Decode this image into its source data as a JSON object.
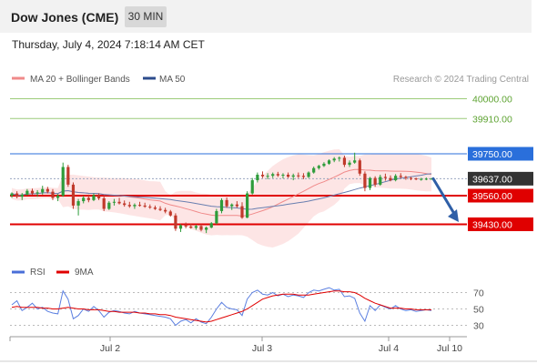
{
  "header": {
    "title": "Dow Jones (CME)",
    "timeframe": "30 MIN",
    "timestamp": "Thursday, July 4, 2024 7:18:14 AM CET"
  },
  "legend_main": [
    {
      "label": "MA 20 + Bollinger Bands",
      "color": "#f08a8a"
    },
    {
      "label": "MA 50",
      "color": "#2c4c8c"
    }
  ],
  "watermark": "Research © 2024 Trading Central",
  "chart_data": {
    "type": "line",
    "price_levels": [
      {
        "label": "40000.00",
        "value": 40000,
        "kind": "target",
        "color": "#9ccc7a"
      },
      {
        "label": "39910.00",
        "value": 39910,
        "kind": "target",
        "color": "#9ccc7a"
      },
      {
        "label": "39750.00",
        "value": 39750,
        "kind": "resistance",
        "color": "#2a6fdb"
      },
      {
        "label": "39637.00",
        "value": 39637,
        "kind": "last_price",
        "color": "#333333"
      },
      {
        "label": "39560.00",
        "value": 39560,
        "kind": "support",
        "color": "#e00000"
      },
      {
        "label": "39430.00",
        "value": 39430,
        "kind": "support",
        "color": "#e00000"
      }
    ],
    "price_range": [
      39300,
      40100
    ],
    "candles": [
      [
        39560,
        39575,
        39550,
        39570
      ],
      [
        39570,
        39580,
        39548,
        39555
      ],
      [
        39555,
        39572,
        39540,
        39565
      ],
      [
        39565,
        39590,
        39560,
        39582
      ],
      [
        39582,
        39592,
        39562,
        39570
      ],
      [
        39570,
        39585,
        39555,
        39575
      ],
      [
        39575,
        39605,
        39565,
        39590
      ],
      [
        39590,
        39600,
        39570,
        39578
      ],
      [
        39578,
        39590,
        39540,
        39550
      ],
      [
        39550,
        39568,
        39535,
        39560
      ],
      [
        39560,
        39710,
        39555,
        39690
      ],
      [
        39690,
        39700,
        39600,
        39610
      ],
      [
        39610,
        39620,
        39500,
        39515
      ],
      [
        39515,
        39545,
        39470,
        39535
      ],
      [
        39535,
        39560,
        39525,
        39550
      ],
      [
        39550,
        39565,
        39530,
        39540
      ],
      [
        39540,
        39570,
        39535,
        39562
      ],
      [
        39562,
        39570,
        39540,
        39548
      ],
      [
        39548,
        39560,
        39490,
        39500
      ],
      [
        39500,
        39535,
        39495,
        39528
      ],
      [
        39528,
        39545,
        39515,
        39532
      ],
      [
        39532,
        39550,
        39520,
        39525
      ],
      [
        39525,
        39538,
        39510,
        39518
      ],
      [
        39518,
        39532,
        39505,
        39512
      ],
      [
        39512,
        39525,
        39500,
        39518
      ],
      [
        39518,
        39532,
        39510,
        39515
      ],
      [
        39515,
        39528,
        39505,
        39510
      ],
      [
        39510,
        39520,
        39500,
        39506
      ],
      [
        39506,
        39515,
        39495,
        39500
      ],
      [
        39500,
        39512,
        39490,
        39495
      ],
      [
        39495,
        39505,
        39480,
        39488
      ],
      [
        39488,
        39495,
        39465,
        39470
      ],
      [
        39470,
        39480,
        39400,
        39410
      ],
      [
        39410,
        39430,
        39395,
        39425
      ],
      [
        39425,
        39438,
        39412,
        39420
      ],
      [
        39420,
        39432,
        39410,
        39414
      ],
      [
        39414,
        39428,
        39405,
        39422
      ],
      [
        39422,
        39430,
        39398,
        39405
      ],
      [
        39405,
        39420,
        39390,
        39415
      ],
      [
        39415,
        39440,
        39412,
        39435
      ],
      [
        39435,
        39500,
        39430,
        39490
      ],
      [
        39490,
        39548,
        39480,
        39540
      ],
      [
        39540,
        39552,
        39505,
        39512
      ],
      [
        39512,
        39525,
        39495,
        39520
      ],
      [
        39520,
        39535,
        39505,
        39512
      ],
      [
        39512,
        39530,
        39455,
        39460
      ],
      [
        39460,
        39580,
        39458,
        39570
      ],
      [
        39570,
        39640,
        39565,
        39630
      ],
      [
        39630,
        39665,
        39620,
        39655
      ],
      [
        39655,
        39670,
        39640,
        39648
      ],
      [
        39648,
        39662,
        39635,
        39650
      ],
      [
        39650,
        39665,
        39640,
        39658
      ],
      [
        39658,
        39668,
        39645,
        39652
      ],
      [
        39652,
        39662,
        39638,
        39655
      ],
      [
        39655,
        39665,
        39640,
        39646
      ],
      [
        39646,
        39660,
        39630,
        39652
      ],
      [
        39652,
        39665,
        39640,
        39650
      ],
      [
        39650,
        39662,
        39635,
        39645
      ],
      [
        39645,
        39670,
        39640,
        39665
      ],
      [
        39665,
        39692,
        39660,
        39685
      ],
      [
        39685,
        39700,
        39678,
        39695
      ],
      [
        39695,
        39712,
        39690,
        39705
      ],
      [
        39705,
        39725,
        39700,
        39720
      ],
      [
        39720,
        39735,
        39712,
        39728
      ],
      [
        39728,
        39738,
        39715,
        39732
      ],
      [
        39732,
        39742,
        39690,
        39700
      ],
      [
        39700,
        39720,
        39690,
        39710
      ],
      [
        39710,
        39755,
        39705,
        39720
      ],
      [
        39720,
        39728,
        39650,
        39660
      ],
      [
        39660,
        39670,
        39580,
        39595
      ],
      [
        39595,
        39645,
        39585,
        39640
      ],
      [
        39640,
        39648,
        39600,
        39610
      ],
      [
        39610,
        39655,
        39605,
        39645
      ],
      [
        39645,
        39660,
        39628,
        39640
      ],
      [
        39640,
        39652,
        39625,
        39630
      ],
      [
        39630,
        39658,
        39625,
        39650
      ],
      [
        39650,
        39662,
        39638,
        39645
      ],
      [
        39645,
        39650,
        39632,
        39640
      ],
      [
        39640,
        39645,
        39630,
        39638
      ],
      [
        39638,
        39642,
        39630,
        39635
      ],
      [
        39635,
        39641,
        39628,
        39636
      ],
      [
        39636,
        39642,
        39630,
        39637
      ],
      [
        39637,
        39640,
        39633,
        39637
      ]
    ],
    "forecast_arrow": {
      "from": 39637,
      "to": 39440
    },
    "x_tick_labels": [
      "Jul 2",
      "Jul 3",
      "Jul 4",
      "Jul 10"
    ],
    "rsi": {
      "legend": [
        {
          "label": "RSI",
          "color": "#4a6fd8"
        },
        {
          "label": "9MA",
          "color": "#e00000"
        }
      ],
      "levels": [
        70,
        50,
        30
      ],
      "range": [
        15,
        85
      ],
      "values": [
        55,
        60,
        48,
        52,
        57,
        50,
        52,
        47,
        45,
        44,
        72,
        62,
        38,
        42,
        50,
        47,
        53,
        48,
        40,
        46,
        48,
        47,
        45,
        44,
        47,
        45,
        44,
        43,
        42,
        41,
        40,
        38,
        30,
        35,
        37,
        33,
        38,
        34,
        32,
        40,
        50,
        58,
        52,
        50,
        49,
        42,
        62,
        70,
        73,
        68,
        67,
        70,
        66,
        68,
        65,
        67,
        66,
        64,
        70,
        73,
        72,
        74,
        76,
        73,
        74,
        65,
        66,
        63,
        45,
        35,
        54,
        48,
        55,
        52,
        50,
        54,
        50,
        48,
        49,
        47,
        48,
        49,
        48
      ],
      "ma_values": [
        52,
        53,
        52,
        52,
        52,
        52,
        51,
        51,
        50,
        50,
        51,
        52,
        51,
        50,
        50,
        49,
        49,
        49,
        48,
        47,
        47,
        46,
        46,
        46,
        46,
        45,
        45,
        44,
        44,
        43,
        43,
        42,
        40,
        39,
        38,
        37,
        36,
        35,
        34,
        35,
        37,
        39,
        41,
        43,
        45,
        47,
        50,
        54,
        58,
        62,
        64,
        66,
        67,
        68,
        68,
        68,
        67,
        67,
        67,
        68,
        69,
        70,
        71,
        72,
        72,
        71,
        71,
        70,
        67,
        63,
        60,
        57,
        55,
        53,
        51,
        51,
        51,
        50,
        50,
        49,
        49,
        49,
        49
      ]
    }
  }
}
